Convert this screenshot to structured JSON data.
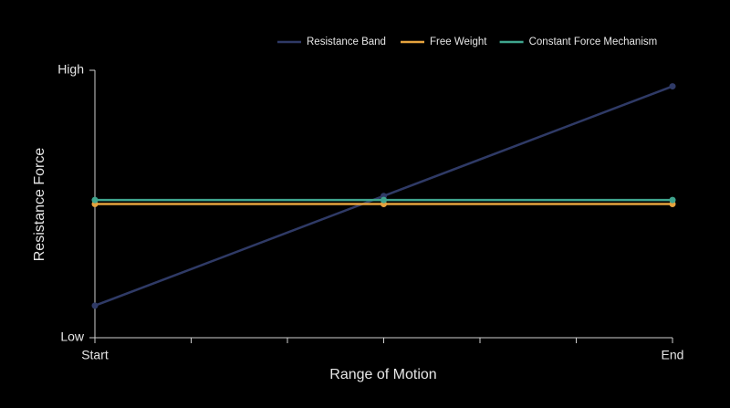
{
  "chart_data": {
    "type": "line",
    "x_label": "Range of Motion",
    "y_label": "Resistance Force",
    "x": [
      0,
      3,
      6
    ],
    "series": [
      {
        "name": "Resistance Band",
        "color": "#2f3a66",
        "values": [
          12,
          53,
          94
        ]
      },
      {
        "name": "Free Weight",
        "color": "#e6a33e",
        "values": [
          50,
          50,
          50
        ]
      },
      {
        "name": "Constant Force Mechanism",
        "color": "#3fa58e",
        "values": [
          51.5,
          51.5,
          51.5
        ]
      }
    ],
    "xlim": [
      0,
      6
    ],
    "xticks": [
      {
        "value": 0,
        "label": "Start"
      },
      {
        "value": 6,
        "label": "End"
      }
    ],
    "xminorticks": [
      1,
      2,
      3,
      4,
      5
    ],
    "ylim": [
      0,
      100
    ],
    "yticks": [
      {
        "value": 0,
        "label": "Low"
      },
      {
        "value": 100,
        "label": "High"
      }
    ],
    "legend": "top-right",
    "grid": false
  }
}
